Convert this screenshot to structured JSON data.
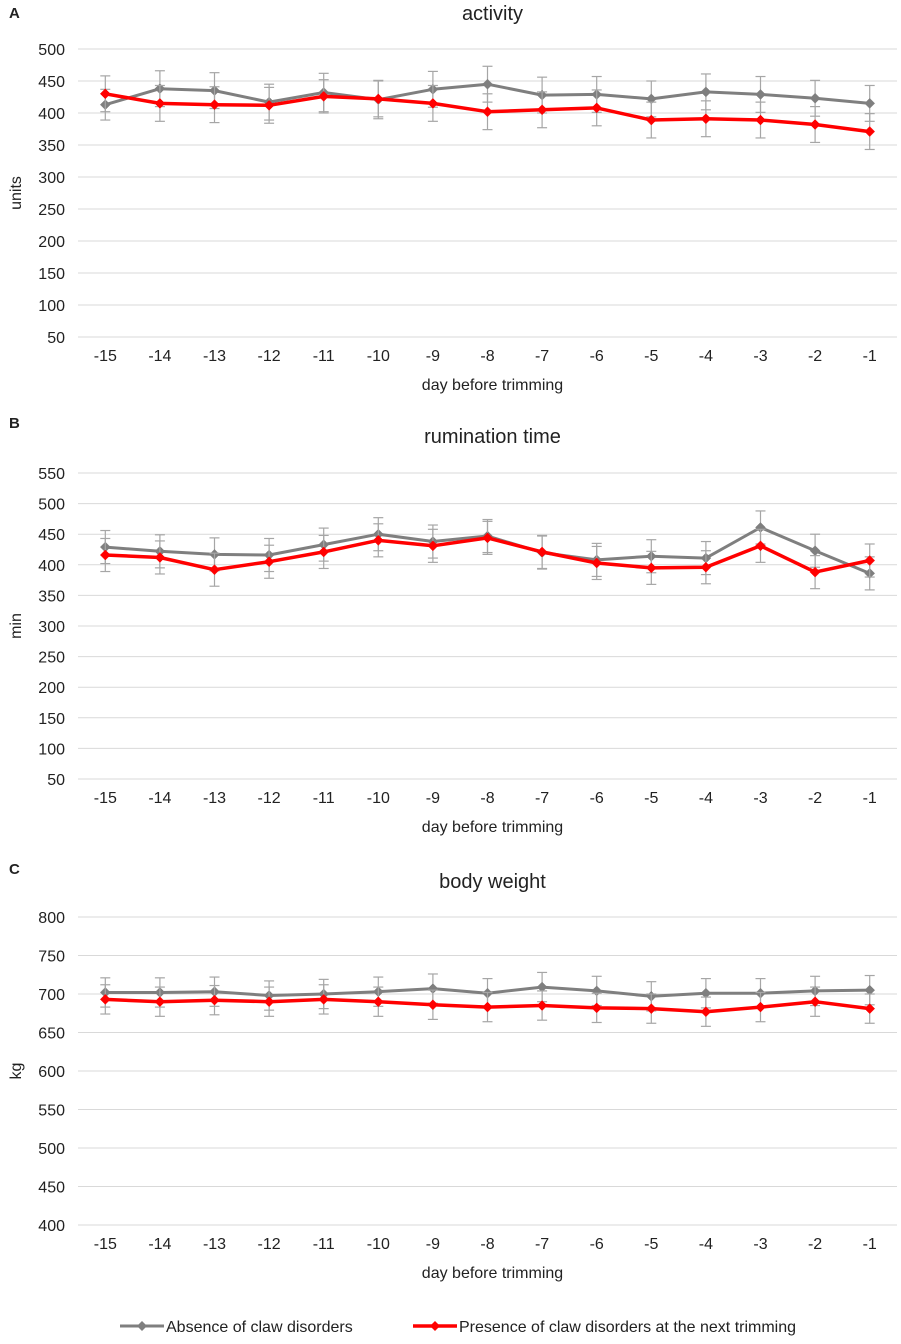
{
  "colors": {
    "absence": "#7f7f7f",
    "presence": "#ff0000",
    "grid": "#d9d9d9",
    "errorbar": "#a6a6a6",
    "axis": "#d9d9d9",
    "text": "#222222"
  },
  "legend": {
    "absence": "Absence of claw disorders",
    "presence": "Presence of claw disorders at the next trimming"
  },
  "chart_data": [
    {
      "type": "line",
      "panel_label": "A",
      "title": "activity",
      "xlabel": "day before trimming",
      "ylabel": "units",
      "ylim": [
        50,
        500
      ],
      "yticks": [
        50,
        100,
        150,
        200,
        250,
        300,
        350,
        400,
        450,
        500
      ],
      "categories": [
        "-15",
        "-14",
        "-13",
        "-12",
        "-11",
        "-10",
        "-9",
        "-8",
        "-7",
        "-6",
        "-5",
        "-4",
        "-3",
        "-2",
        "-1"
      ],
      "series": [
        {
          "name": "Absence of claw disorders",
          "key": "absence",
          "values": [
            413,
            438,
            435,
            417,
            432,
            421,
            437,
            445,
            428,
            429,
            422,
            433,
            429,
            423,
            415
          ],
          "errors": [
            24,
            28,
            28,
            28,
            30,
            30,
            28,
            28,
            28,
            28,
            28,
            28,
            28,
            28,
            28
          ]
        },
        {
          "name": "Presence of claw disorders at the next trimming",
          "key": "presence",
          "values": [
            430,
            415,
            413,
            412,
            426,
            422,
            415,
            402,
            405,
            408,
            389,
            391,
            389,
            382,
            371
          ],
          "errors": [
            28,
            28,
            28,
            28,
            26,
            28,
            28,
            28,
            28,
            28,
            28,
            28,
            28,
            28,
            28
          ]
        }
      ]
    },
    {
      "type": "line",
      "panel_label": "B",
      "title": "rumination time",
      "xlabel": "day before trimming",
      "ylabel": "min",
      "ylim": [
        50,
        550
      ],
      "yticks": [
        50,
        100,
        150,
        200,
        250,
        300,
        350,
        400,
        450,
        500,
        550
      ],
      "categories": [
        "-15",
        "-14",
        "-13",
        "-12",
        "-11",
        "-10",
        "-9",
        "-8",
        "-7",
        "-6",
        "-5",
        "-4",
        "-3",
        "-2",
        "-1"
      ],
      "series": [
        {
          "name": "Absence of claw disorders",
          "key": "absence",
          "values": [
            429,
            422,
            417,
            416,
            433,
            450,
            438,
            447,
            420,
            408,
            414,
            411,
            461,
            423,
            386
          ],
          "errors": [
            27,
            27,
            27,
            27,
            27,
            27,
            27,
            27,
            27,
            27,
            27,
            27,
            27,
            27,
            27
          ]
        },
        {
          "name": "Presence of claw disorders at the next trimming",
          "key": "presence",
          "values": [
            416,
            412,
            392,
            405,
            421,
            440,
            431,
            444,
            421,
            403,
            395,
            396,
            431,
            388,
            407
          ],
          "errors": [
            27,
            27,
            27,
            27,
            27,
            27,
            27,
            27,
            27,
            27,
            27,
            27,
            27,
            27,
            27
          ]
        }
      ]
    },
    {
      "type": "line",
      "panel_label": "C",
      "title": "body weight",
      "xlabel": "day before trimming",
      "ylabel": "kg",
      "ylim": [
        400,
        800
      ],
      "yticks": [
        400,
        450,
        500,
        550,
        600,
        650,
        700,
        750,
        800
      ],
      "categories": [
        "-15",
        "-14",
        "-13",
        "-12",
        "-11",
        "-10",
        "-9",
        "-8",
        "-7",
        "-6",
        "-5",
        "-4",
        "-3",
        "-2",
        "-1"
      ],
      "series": [
        {
          "name": "Absence of claw disorders",
          "key": "absence",
          "values": [
            702,
            702,
            703,
            698,
            700,
            703,
            707,
            701,
            709,
            704,
            697,
            701,
            701,
            704,
            705
          ],
          "errors": [
            19,
            19,
            19,
            19,
            19,
            19,
            19,
            19,
            19,
            19,
            19,
            19,
            19,
            19,
            19
          ]
        },
        {
          "name": "Presence of claw disorders at the next trimming",
          "key": "presence",
          "values": [
            693,
            690,
            692,
            690,
            693,
            690,
            686,
            683,
            685,
            682,
            681,
            677,
            683,
            690,
            681
          ],
          "errors": [
            19,
            19,
            19,
            19,
            19,
            19,
            19,
            19,
            19,
            19,
            19,
            19,
            19,
            19,
            19
          ]
        }
      ]
    }
  ]
}
